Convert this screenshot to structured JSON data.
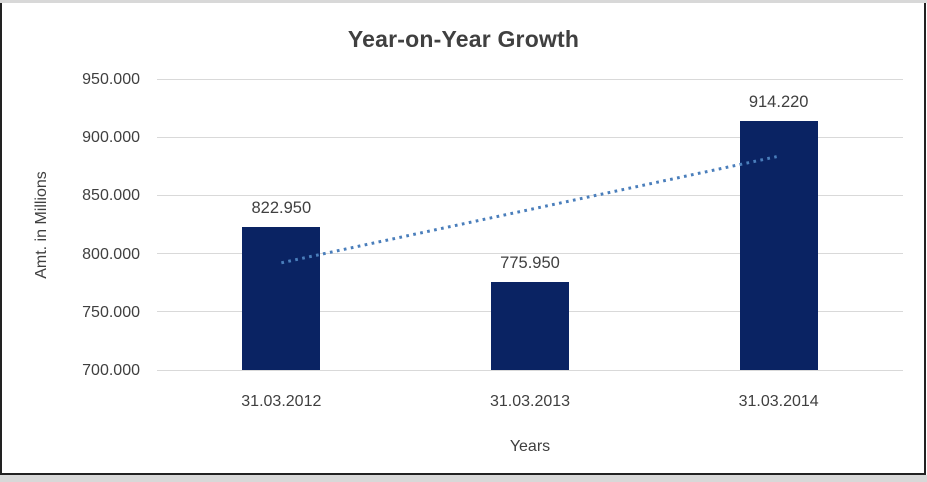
{
  "window": {
    "outer_margin_color": "#d8d8d8",
    "frame_border_color": "#222222",
    "background_color": "#ffffff"
  },
  "chart_data": {
    "type": "bar",
    "title": "Year-on-Year Growth",
    "xlabel": "Years",
    "ylabel": "Amt. in Millions",
    "categories": [
      "31.03.2012",
      "31.03.2013",
      "31.03.2014"
    ],
    "values": [
      822.95,
      775.95,
      914.22
    ],
    "value_labels": [
      "822.950",
      "775.950",
      "914.220"
    ],
    "ylim": [
      700,
      950
    ],
    "yticks": [
      {
        "value": 700,
        "label": "700.000"
      },
      {
        "value": 750,
        "label": "750.000"
      },
      {
        "value": 800,
        "label": "800.000"
      },
      {
        "value": 850,
        "label": "850.000"
      },
      {
        "value": 900,
        "label": "900.000"
      },
      {
        "value": 950,
        "label": "950.000"
      }
    ],
    "grid": true,
    "legend": false,
    "bar_color": "#0a2363",
    "gridline_color": "#d9d9d9",
    "text_color": "#3f3f3f",
    "title_color": "#404040",
    "trendline": {
      "style": "dotted",
      "color": "#4a7ebb",
      "start_value": 792.1,
      "end_value": 883.3
    }
  }
}
